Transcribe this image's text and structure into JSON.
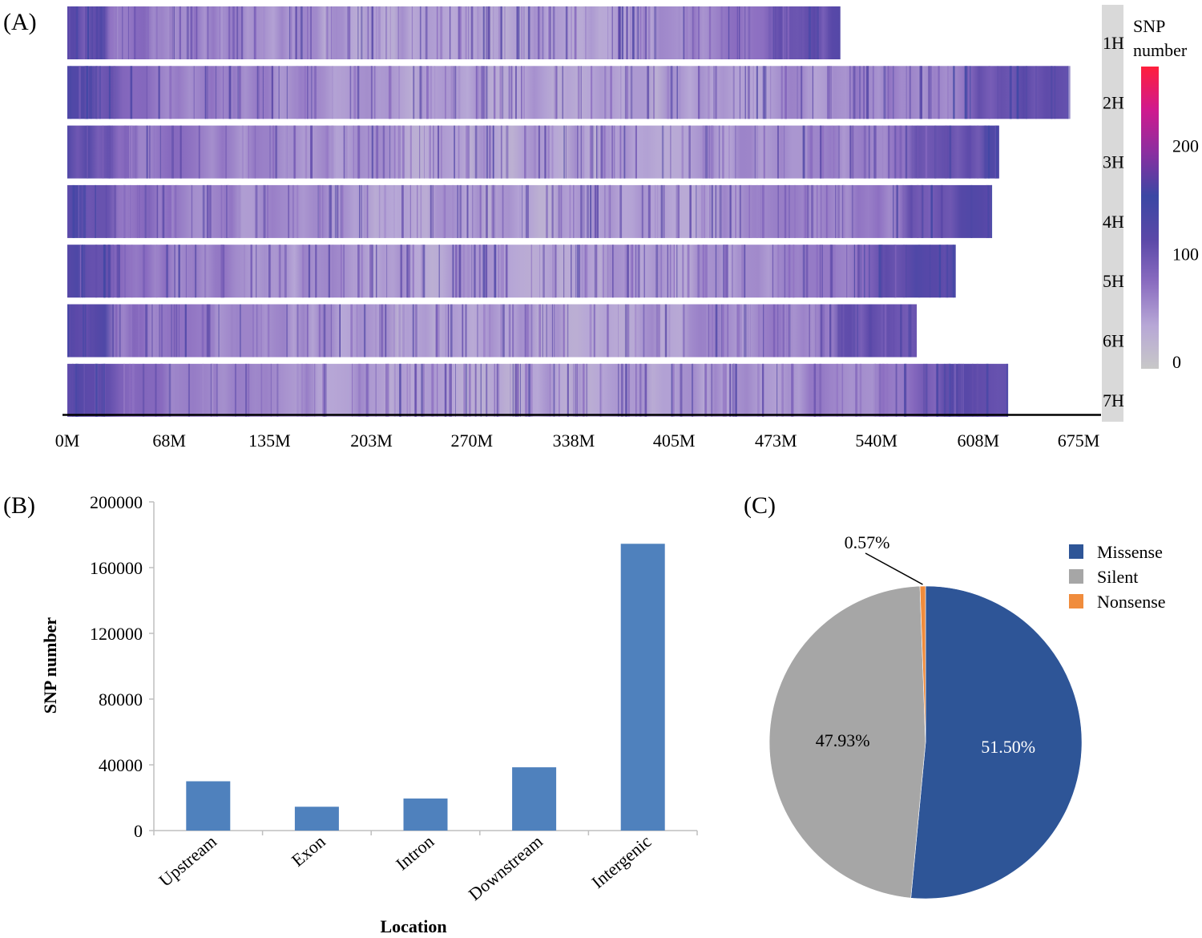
{
  "panels": {
    "a": "(A)",
    "b": "(B)",
    "c": "(C)"
  },
  "chart_data": [
    {
      "type": "heatmap",
      "panel": "(A)",
      "rows": [
        {
          "label": "1H",
          "length_M": 516
        },
        {
          "label": "2H",
          "length_M": 668
        },
        {
          "label": "3H",
          "length_M": 622
        },
        {
          "label": "4H",
          "length_M": 617
        },
        {
          "label": "5H",
          "length_M": 593
        },
        {
          "label": "6H",
          "length_M": 567
        },
        {
          "label": "7H",
          "length_M": 628
        }
      ],
      "x_ticks": [
        "0M",
        "68M",
        "135M",
        "203M",
        "270M",
        "338M",
        "405M",
        "473M",
        "540M",
        "608M",
        "675M"
      ],
      "xlim": [
        0,
        675
      ],
      "colorbar": {
        "title": "SNP number",
        "ticks": [
          "0",
          "100",
          "200"
        ],
        "range": [
          0,
          280
        ],
        "colors": [
          "#c8c8c8",
          "#b7a7d6",
          "#8a6cc0",
          "#5a48a8",
          "#3b47a4",
          "#8a2fa0",
          "#d01a8e",
          "#ff1f3c"
        ]
      }
    },
    {
      "type": "bar",
      "panel": "(B)",
      "categories": [
        "Upstream",
        "Exon",
        "Intron",
        "Downstream",
        "Intergenic"
      ],
      "values": [
        30000,
        14500,
        19500,
        38500,
        174500
      ],
      "xlabel": "Location",
      "ylabel": "SNP number",
      "ylim": [
        0,
        200000
      ],
      "y_ticks": [
        "0",
        "40000",
        "80000",
        "120000",
        "160000",
        "200000"
      ],
      "color": "#4f81bd"
    },
    {
      "type": "pie",
      "panel": "(C)",
      "slices": [
        {
          "label": "Missense",
          "value": 51.5,
          "text": "51.50%",
          "color": "#2e5597"
        },
        {
          "label": "Silent",
          "value": 47.93,
          "text": "47.93%",
          "color": "#a6a6a6"
        },
        {
          "label": "Nonsense",
          "value": 0.57,
          "text": "0.57%",
          "color": "#f08c3c"
        }
      ],
      "legend_position": "top-right"
    }
  ]
}
